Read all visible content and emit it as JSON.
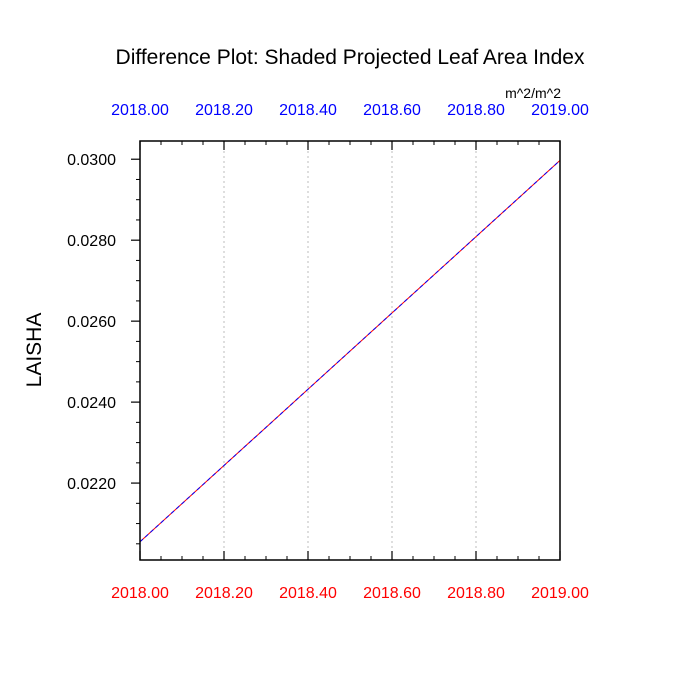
{
  "chart_data": {
    "type": "line",
    "title": "Difference Plot: Shaded Projected Leaf Area Index",
    "units": "m^2/m^2",
    "ylabel": "LAISHA",
    "xlim": [
      2018.0,
      2019.0
    ],
    "ylim": [
      0.0201,
      0.03045
    ],
    "x_tick_values": [
      2018.0,
      2018.2,
      2018.4,
      2018.6,
      2018.8,
      2019.0
    ],
    "x_tick_labels_bottom": [
      "2018.00",
      "2018.20",
      "2018.40",
      "2018.60",
      "2018.80",
      "2019.00"
    ],
    "x_tick_labels_top": [
      "2018.00",
      "2018.20",
      "2018.40",
      "2018.60",
      "2018.80",
      "2019.00"
    ],
    "x_tick_color_bottom": "#ff0000",
    "x_tick_color_top": "#0000ff",
    "x_minor_step": 0.05,
    "y_tick_values": [
      0.022,
      0.024,
      0.026,
      0.028,
      0.03
    ],
    "y_tick_labels": [
      "0.0220",
      "0.0240",
      "0.0260",
      "0.0280",
      "0.0300"
    ],
    "y_minor_step": 0.0005,
    "grid": "vertical dotted",
    "series": [
      {
        "color": "#ff0000",
        "dash": "solid",
        "x": [
          2018.0,
          2019.0
        ],
        "y": [
          0.02055,
          0.02997
        ]
      },
      {
        "color": "#0000ff",
        "dash": "dashed",
        "x": [
          2018.0,
          2019.0
        ],
        "y": [
          0.02055,
          0.02997
        ]
      }
    ]
  }
}
